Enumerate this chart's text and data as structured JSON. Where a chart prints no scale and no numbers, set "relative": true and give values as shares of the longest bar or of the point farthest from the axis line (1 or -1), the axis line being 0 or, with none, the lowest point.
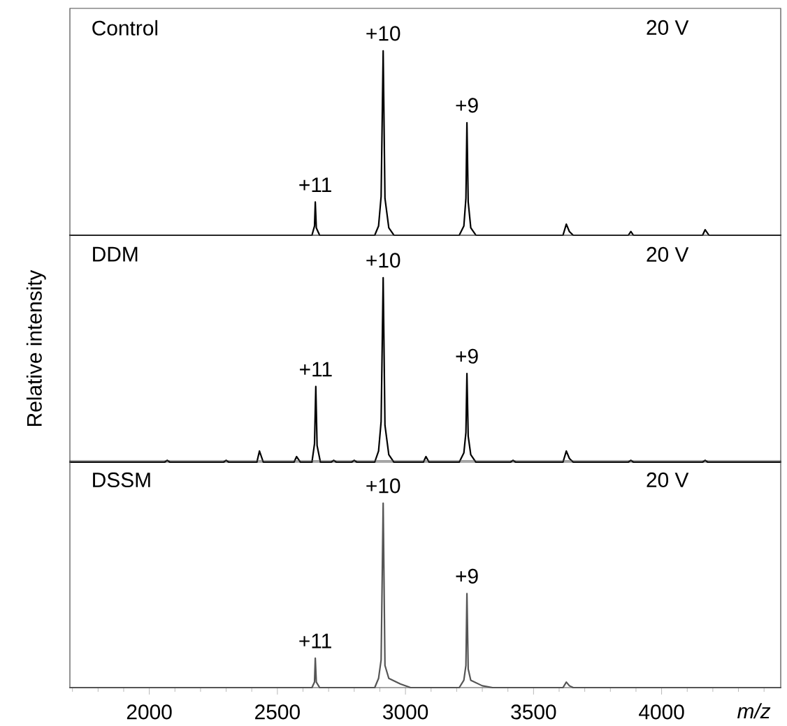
{
  "chart_data": [
    {
      "type": "line",
      "relative": true,
      "color": "#000000",
      "xlim": [
        1690,
        4465
      ],
      "tick_labels": false,
      "x": [
        1690,
        2600,
        2635,
        2645,
        2648,
        2652,
        2665,
        2880,
        2895,
        2905,
        2913,
        2920,
        2935,
        2955,
        3210,
        3228,
        3236,
        3240,
        3245,
        3255,
        3275,
        3615,
        3628,
        3640,
        3655,
        3870,
        3880,
        3890,
        4160,
        4170,
        4185,
        4465
      ],
      "values": [
        0,
        0,
        0,
        0.05,
        0.18,
        0.04,
        0,
        0,
        0.05,
        0.21,
        1,
        0.2,
        0.04,
        0,
        0,
        0.05,
        0.2,
        0.61,
        0.18,
        0.04,
        0,
        0,
        0.06,
        0.02,
        0,
        0,
        0.02,
        0,
        0,
        0.03,
        0,
        0
      ],
      "annotations": [
        "Control",
        "20 V",
        {
          "text": "+11",
          "x": 2648,
          "y": 0.18
        },
        {
          "text": "+10",
          "x": 2913,
          "y": 1
        },
        {
          "text": "+9",
          "x": 3240,
          "y": 0.61
        }
      ]
    },
    {
      "type": "line",
      "relative": true,
      "color": "#000000",
      "xlim": [
        1690,
        4465
      ],
      "tick_labels": false,
      "ylabel": "Relative intensity",
      "x": [
        1690,
        2060,
        2070,
        2080,
        2290,
        2300,
        2310,
        2420,
        2430,
        2445,
        2565,
        2575,
        2590,
        2635,
        2645,
        2650,
        2655,
        2668,
        2710,
        2720,
        2730,
        2790,
        2800,
        2810,
        2880,
        2895,
        2905,
        2913,
        2920,
        2935,
        2955,
        3070,
        3080,
        3092,
        3210,
        3228,
        3236,
        3240,
        3245,
        3255,
        3275,
        3410,
        3420,
        3430,
        3615,
        3628,
        3640,
        3655,
        3870,
        3880,
        3890,
        4160,
        4170,
        4180,
        4465
      ],
      "values": [
        0,
        0,
        0.01,
        0,
        0,
        0.01,
        0,
        0,
        0.06,
        0,
        0,
        0.03,
        0,
        0,
        0.1,
        0.41,
        0.09,
        0,
        0,
        0.01,
        0,
        0,
        0.01,
        0,
        0,
        0.06,
        0.22,
        1,
        0.2,
        0.04,
        0,
        0,
        0.03,
        0,
        0,
        0.05,
        0.16,
        0.48,
        0.14,
        0.04,
        0,
        0,
        0.01,
        0,
        0,
        0.06,
        0.02,
        0,
        0,
        0.01,
        0,
        0,
        0.01,
        0,
        0
      ],
      "annotations": [
        "DDM",
        "20 V",
        {
          "text": "+11",
          "x": 2650,
          "y": 0.41
        },
        {
          "text": "+10",
          "x": 2913,
          "y": 1
        },
        {
          "text": "+9",
          "x": 3240,
          "y": 0.48
        }
      ]
    },
    {
      "type": "line",
      "relative": true,
      "color": "#555555",
      "xlim": [
        1690,
        4465
      ],
      "tick_labels": "x",
      "xlabel": "m/z",
      "xticks": [
        {
          "value": 1700,
          "label": null
        },
        {
          "value": 1800,
          "label": null
        },
        {
          "value": 1900,
          "label": null
        },
        2000,
        {
          "value": 2100,
          "label": null
        },
        {
          "value": 2200,
          "label": null
        },
        {
          "value": 2300,
          "label": null
        },
        {
          "value": 2400,
          "label": null
        },
        2500,
        {
          "value": 2600,
          "label": null
        },
        {
          "value": 2700,
          "label": null
        },
        {
          "value": 2800,
          "label": null
        },
        {
          "value": 2900,
          "label": null
        },
        3000,
        {
          "value": 3100,
          "label": null
        },
        {
          "value": 3200,
          "label": null
        },
        {
          "value": 3300,
          "label": null
        },
        {
          "value": 3400,
          "label": null
        },
        3500,
        {
          "value": 3600,
          "label": null
        },
        {
          "value": 3700,
          "label": null
        },
        {
          "value": 3800,
          "label": null
        },
        {
          "value": 3900,
          "label": null
        },
        4000,
        {
          "value": 4100,
          "label": null
        },
        {
          "value": 4200,
          "label": null
        },
        {
          "value": 4300,
          "label": null
        },
        {
          "value": 4400,
          "label": null
        }
      ],
      "x": [
        1690,
        2635,
        2645,
        2648,
        2652,
        2665,
        2880,
        2895,
        2905,
        2913,
        2920,
        2935,
        2980,
        3020,
        3210,
        3228,
        3236,
        3240,
        3245,
        3255,
        3300,
        3340,
        3615,
        3628,
        3640,
        3655,
        4465
      ],
      "values": [
        0,
        0,
        0.03,
        0.16,
        0.03,
        0,
        0,
        0.05,
        0.15,
        1,
        0.12,
        0.05,
        0.02,
        0,
        0,
        0.04,
        0.12,
        0.51,
        0.1,
        0.04,
        0.01,
        0,
        0,
        0.03,
        0.01,
        0,
        0
      ],
      "annotations": [
        "DSSM",
        "20 V",
        {
          "text": "+11",
          "x": 2648,
          "y": 0.16
        },
        {
          "text": "+10",
          "x": 2913,
          "y": 1
        },
        {
          "text": "+9",
          "x": 3240,
          "y": 0.51
        }
      ]
    }
  ]
}
